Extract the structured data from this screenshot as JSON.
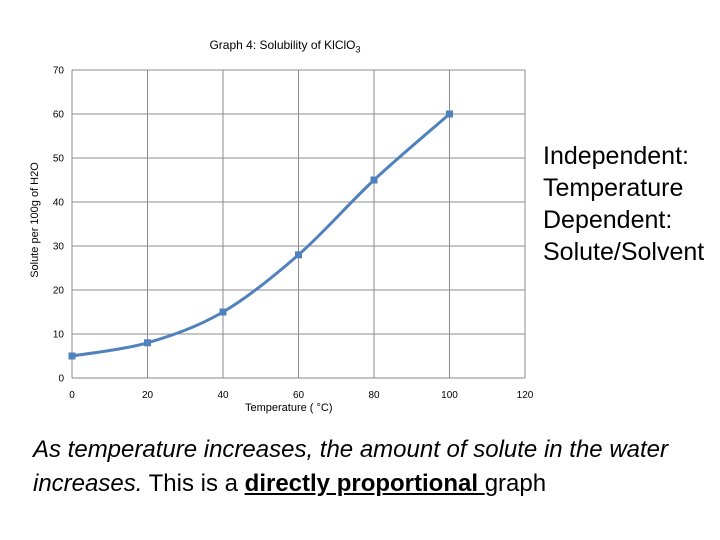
{
  "chart_data": {
    "type": "line",
    "title": "Graph 4: Solubility of KlClO",
    "title_subscript": "3",
    "xlabel": "Temperature ( °C)",
    "ylabel": "Solute per 100g of H2O",
    "x_ticks": [
      "0",
      "20",
      "40",
      "60",
      "80",
      "100",
      "120"
    ],
    "y_ticks": [
      "0",
      "10",
      "20",
      "30",
      "40",
      "50",
      "60",
      "70"
    ],
    "xlim": [
      0,
      120
    ],
    "ylim": [
      0,
      70
    ],
    "grid": true,
    "series": [
      {
        "x": [
          0,
          20,
          40,
          60,
          80,
          100
        ],
        "y": [
          5,
          8,
          15,
          28,
          45,
          60
        ],
        "color": "#4f81bd",
        "marker": "square"
      }
    ]
  },
  "notes": {
    "independent_label": "Independent",
    "independent_value": "Temperature",
    "dependent_label": "Dependent",
    "dependent_value": "Solute/Solvent",
    "colon": ":"
  },
  "caption": {
    "italic_text": "As temperature increases, the amount of solute in the water increases.",
    "plain_text": " This is a ",
    "emphasis": "directly proportional ",
    "tail": "graph"
  }
}
